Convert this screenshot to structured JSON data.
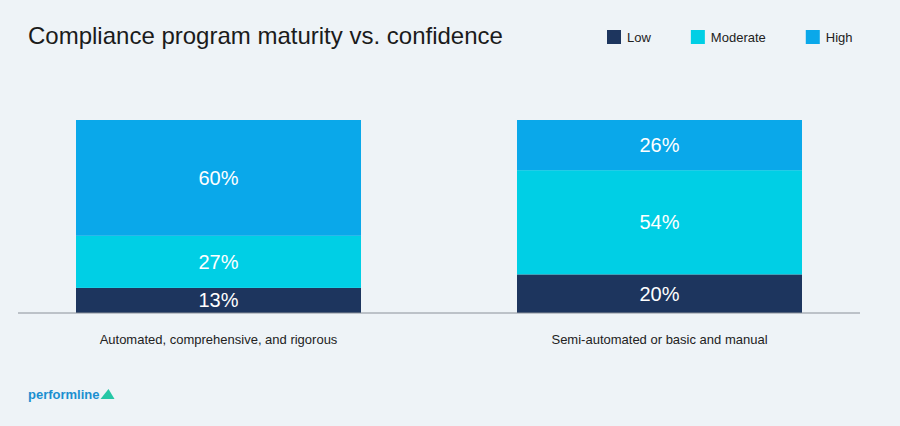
{
  "chart_data": {
    "type": "bar",
    "title": "Compliance program maturity vs. confidence",
    "categories": [
      "Automated, comprehensive, and rigorous",
      "Semi-automated or basic and manual"
    ],
    "series": [
      {
        "name": "Low",
        "color": "#1d355e",
        "values": [
          13,
          20
        ],
        "value_labels": [
          "13%",
          "20%"
        ]
      },
      {
        "name": "Moderate",
        "color": "#00cfe5",
        "values": [
          27,
          54
        ],
        "value_labels": [
          "27%",
          "54%"
        ]
      },
      {
        "name": "High",
        "color": "#0aa8ea",
        "values": [
          60,
          26
        ],
        "value_labels": [
          "60%",
          "26%"
        ]
      }
    ],
    "ylim": [
      0,
      100
    ],
    "stacked": true,
    "data_labels": true,
    "tick_labels": "x",
    "legend": "top-right",
    "annotations": [
      "performline"
    ]
  }
}
